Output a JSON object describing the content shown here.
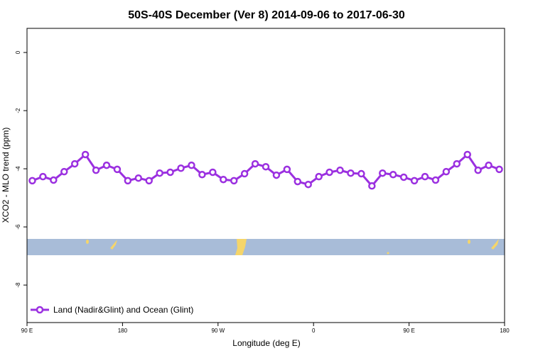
{
  "chart_data": {
    "type": "line",
    "title": "50S-40S December (Ver 8)   2014-09-06 to 2017-06-30",
    "x_label": "Longitude (deg E)",
    "y_label": "XCO2 - MLO trend (ppm)",
    "x": [
      95,
      105,
      115,
      125,
      135,
      145,
      155,
      165,
      175,
      185,
      195,
      205,
      215,
      225,
      235,
      245,
      255,
      265,
      275,
      285,
      295,
      305,
      315,
      325,
      335,
      345,
      355,
      365,
      375,
      385,
      395,
      405,
      415,
      425,
      435,
      445,
      455,
      465,
      475,
      485,
      495,
      505,
      515,
      525,
      535
    ],
    "series": [
      {
        "name": "Land (Nadir&Glint) and Ocean (Glint)",
        "color": "#9b30e0",
        "values": [
          -4.41,
          -4.27,
          -4.39,
          -4.1,
          -3.83,
          -3.51,
          -4.05,
          -3.88,
          -4.02,
          -4.41,
          -4.32,
          -4.41,
          -4.15,
          -4.12,
          -3.98,
          -3.88,
          -4.2,
          -4.12,
          -4.37,
          -4.41,
          -4.17,
          -3.83,
          -3.93,
          -4.22,
          -4.02,
          -4.44,
          -4.54,
          -4.27,
          -4.12,
          -4.05,
          -4.15,
          -4.17,
          -4.59,
          -4.15,
          -4.2,
          -4.29,
          -4.41,
          -4.27,
          -4.39,
          -4.1,
          -3.83,
          -3.51,
          -4.05,
          -3.88,
          -4.02
        ]
      }
    ],
    "xlim": [
      90,
      540
    ],
    "xticks": [
      {
        "value": 90,
        "label": "90 E"
      },
      180,
      {
        "value": 270,
        "label": "90 W"
      },
      {
        "value": 360,
        "label": "0"
      },
      {
        "value": 450,
        "label": "90 E"
      },
      {
        "value": 540,
        "label": "180"
      }
    ],
    "ylim": [
      -9.29,
      0.83
    ],
    "yticks": [
      0,
      -2,
      -4,
      -6,
      -8
    ],
    "legend": "bottom-left"
  }
}
